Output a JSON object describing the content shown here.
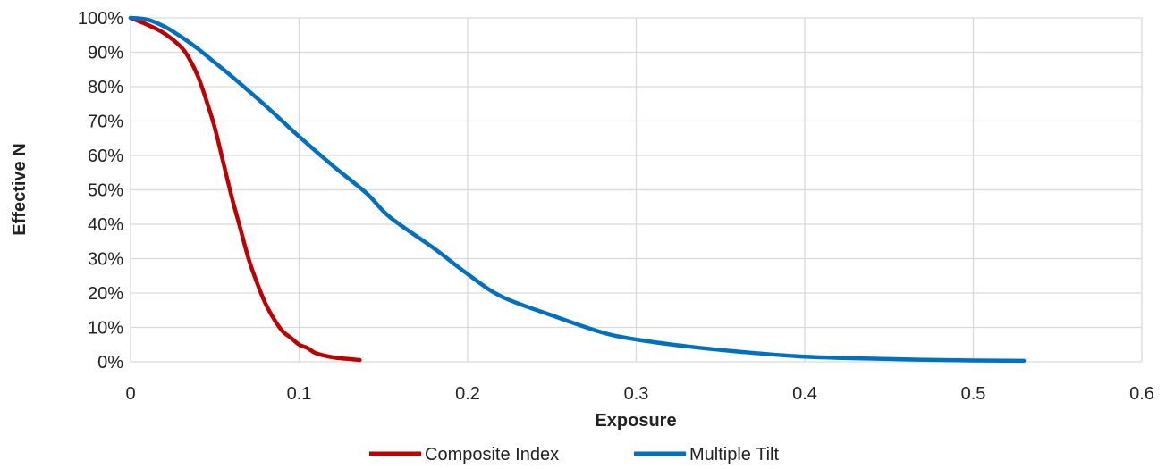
{
  "chart_data": {
    "type": "line",
    "title": "",
    "xlabel": "Exposure",
    "ylabel": "Effective N",
    "xlim": [
      0,
      0.6
    ],
    "ylim": [
      0,
      1
    ],
    "x_ticks": [
      0,
      0.1,
      0.2,
      0.3,
      0.4,
      0.5,
      0.6
    ],
    "x_tick_labels": [
      "0",
      "0.1",
      "0.2",
      "0.3",
      "0.4",
      "0.5",
      "0.6"
    ],
    "y_ticks": [
      0,
      0.1,
      0.2,
      0.3,
      0.4,
      0.5,
      0.6,
      0.7,
      0.8,
      0.9,
      1.0
    ],
    "y_tick_labels": [
      "0%",
      "10%",
      "20%",
      "30%",
      "40%",
      "50%",
      "60%",
      "70%",
      "80%",
      "90%",
      "100%"
    ],
    "grid": true,
    "legend_position": "bottom",
    "series": [
      {
        "name": "Composite Index",
        "color": "#C00000",
        "x": [
          0,
          0.01,
          0.02,
          0.03,
          0.035,
          0.04,
          0.045,
          0.05,
          0.055,
          0.06,
          0.065,
          0.07,
          0.075,
          0.08,
          0.085,
          0.09,
          0.095,
          0.1,
          0.105,
          0.11,
          0.12,
          0.13,
          0.136
        ],
        "y": [
          1.0,
          0.98,
          0.955,
          0.915,
          0.88,
          0.83,
          0.76,
          0.68,
          0.58,
          0.48,
          0.39,
          0.3,
          0.23,
          0.17,
          0.125,
          0.09,
          0.07,
          0.05,
          0.04,
          0.025,
          0.013,
          0.008,
          0.005
        ]
      },
      {
        "name": "Multiple Tilt",
        "color": "#0070C0",
        "x": [
          0,
          0.01,
          0.02,
          0.03,
          0.04,
          0.05,
          0.06,
          0.08,
          0.1,
          0.12,
          0.14,
          0.154,
          0.18,
          0.2,
          0.22,
          0.25,
          0.28,
          0.3,
          0.33,
          0.36,
          0.4,
          0.45,
          0.5,
          0.53
        ],
        "y": [
          1.0,
          0.995,
          0.975,
          0.945,
          0.91,
          0.87,
          0.83,
          0.745,
          0.655,
          0.57,
          0.49,
          0.42,
          0.33,
          0.255,
          0.19,
          0.135,
          0.085,
          0.065,
          0.045,
          0.03,
          0.015,
          0.008,
          0.004,
          0.003
        ]
      }
    ]
  }
}
